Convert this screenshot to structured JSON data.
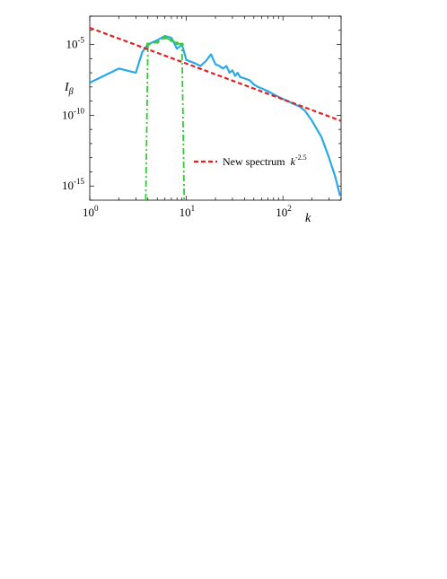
{
  "chart_data": {
    "type": "line",
    "xscale": "log",
    "yscale": "log",
    "xlim": [
      1,
      400
    ],
    "ylim": [
      1e-16,
      0.001
    ],
    "xlabel": "k",
    "ylabel": "I",
    "ylabel_sub": "β",
    "grid": false,
    "legend_position": "right-middle",
    "x_ticks": [
      {
        "value": 1,
        "base": "10",
        "exp": "0"
      },
      {
        "value": 10,
        "base": "10",
        "exp": "1"
      },
      {
        "value": 100,
        "base": "10",
        "exp": "2"
      }
    ],
    "y_ticks": [
      {
        "value": 1e-05,
        "base": "10",
        "exp": "-5"
      },
      {
        "value": 1e-10,
        "base": "10",
        "exp": "-10"
      },
      {
        "value": 1e-15,
        "base": "10",
        "exp": "-15"
      }
    ],
    "series": [
      {
        "id": "spectrum",
        "color": "#2aa9e8",
        "style": "solid",
        "points": [
          [
            1,
            2e-08
          ],
          [
            2,
            2e-07
          ],
          [
            3,
            1e-07
          ],
          [
            3.5,
            3e-06
          ],
          [
            4,
            1e-05
          ],
          [
            5,
            2e-05
          ],
          [
            6,
            4e-05
          ],
          [
            7,
            3e-05
          ],
          [
            8,
            5e-06
          ],
          [
            9,
            1e-05
          ],
          [
            10,
            8e-07
          ],
          [
            12,
            5e-07
          ],
          [
            14,
            3e-07
          ],
          [
            16,
            7e-07
          ],
          [
            18,
            2e-06
          ],
          [
            20,
            4e-07
          ],
          [
            22,
            3e-07
          ],
          [
            24,
            2e-07
          ],
          [
            26,
            3e-07
          ],
          [
            28,
            1e-07
          ],
          [
            30,
            1.5e-07
          ],
          [
            32,
            6e-08
          ],
          [
            34,
            1e-07
          ],
          [
            36,
            5e-08
          ],
          [
            40,
            4e-08
          ],
          [
            45,
            3e-08
          ],
          [
            50,
            1.5e-08
          ],
          [
            55,
            1e-08
          ],
          [
            60,
            8e-09
          ],
          [
            70,
            5e-09
          ],
          [
            80,
            3e-09
          ],
          [
            100,
            1.4e-09
          ],
          [
            120,
            8e-10
          ],
          [
            150,
            4e-10
          ],
          [
            170,
            2e-10
          ],
          [
            200,
            4e-11
          ],
          [
            250,
            3e-12
          ],
          [
            300,
            1e-13
          ],
          [
            350,
            4e-15
          ],
          [
            390,
            2e-16
          ]
        ]
      },
      {
        "id": "forcing",
        "color": "#33cc33",
        "style": "dashdot",
        "points": [
          [
            3.8,
            1e-16
          ],
          [
            4,
            1e-05
          ],
          [
            5,
            1.5e-05
          ],
          [
            6,
            3e-05
          ],
          [
            7,
            2e-05
          ],
          [
            8,
            1.2e-05
          ],
          [
            9,
            1e-05
          ],
          [
            9.5,
            1e-16
          ]
        ],
        "markers": [
          [
            4,
            1e-05
          ],
          [
            5,
            1.5e-05
          ],
          [
            6,
            3e-05
          ],
          [
            7,
            2e-05
          ],
          [
            8,
            1.2e-05
          ],
          [
            9,
            1e-05
          ]
        ]
      },
      {
        "id": "new-spectrum",
        "name": "New spectrum",
        "name_math": "k",
        "name_exp": "-2.5",
        "color": "#e02020",
        "style": "dashed",
        "points": [
          [
            1,
            0.00015
          ],
          [
            400,
            4e-11
          ]
        ]
      }
    ]
  }
}
